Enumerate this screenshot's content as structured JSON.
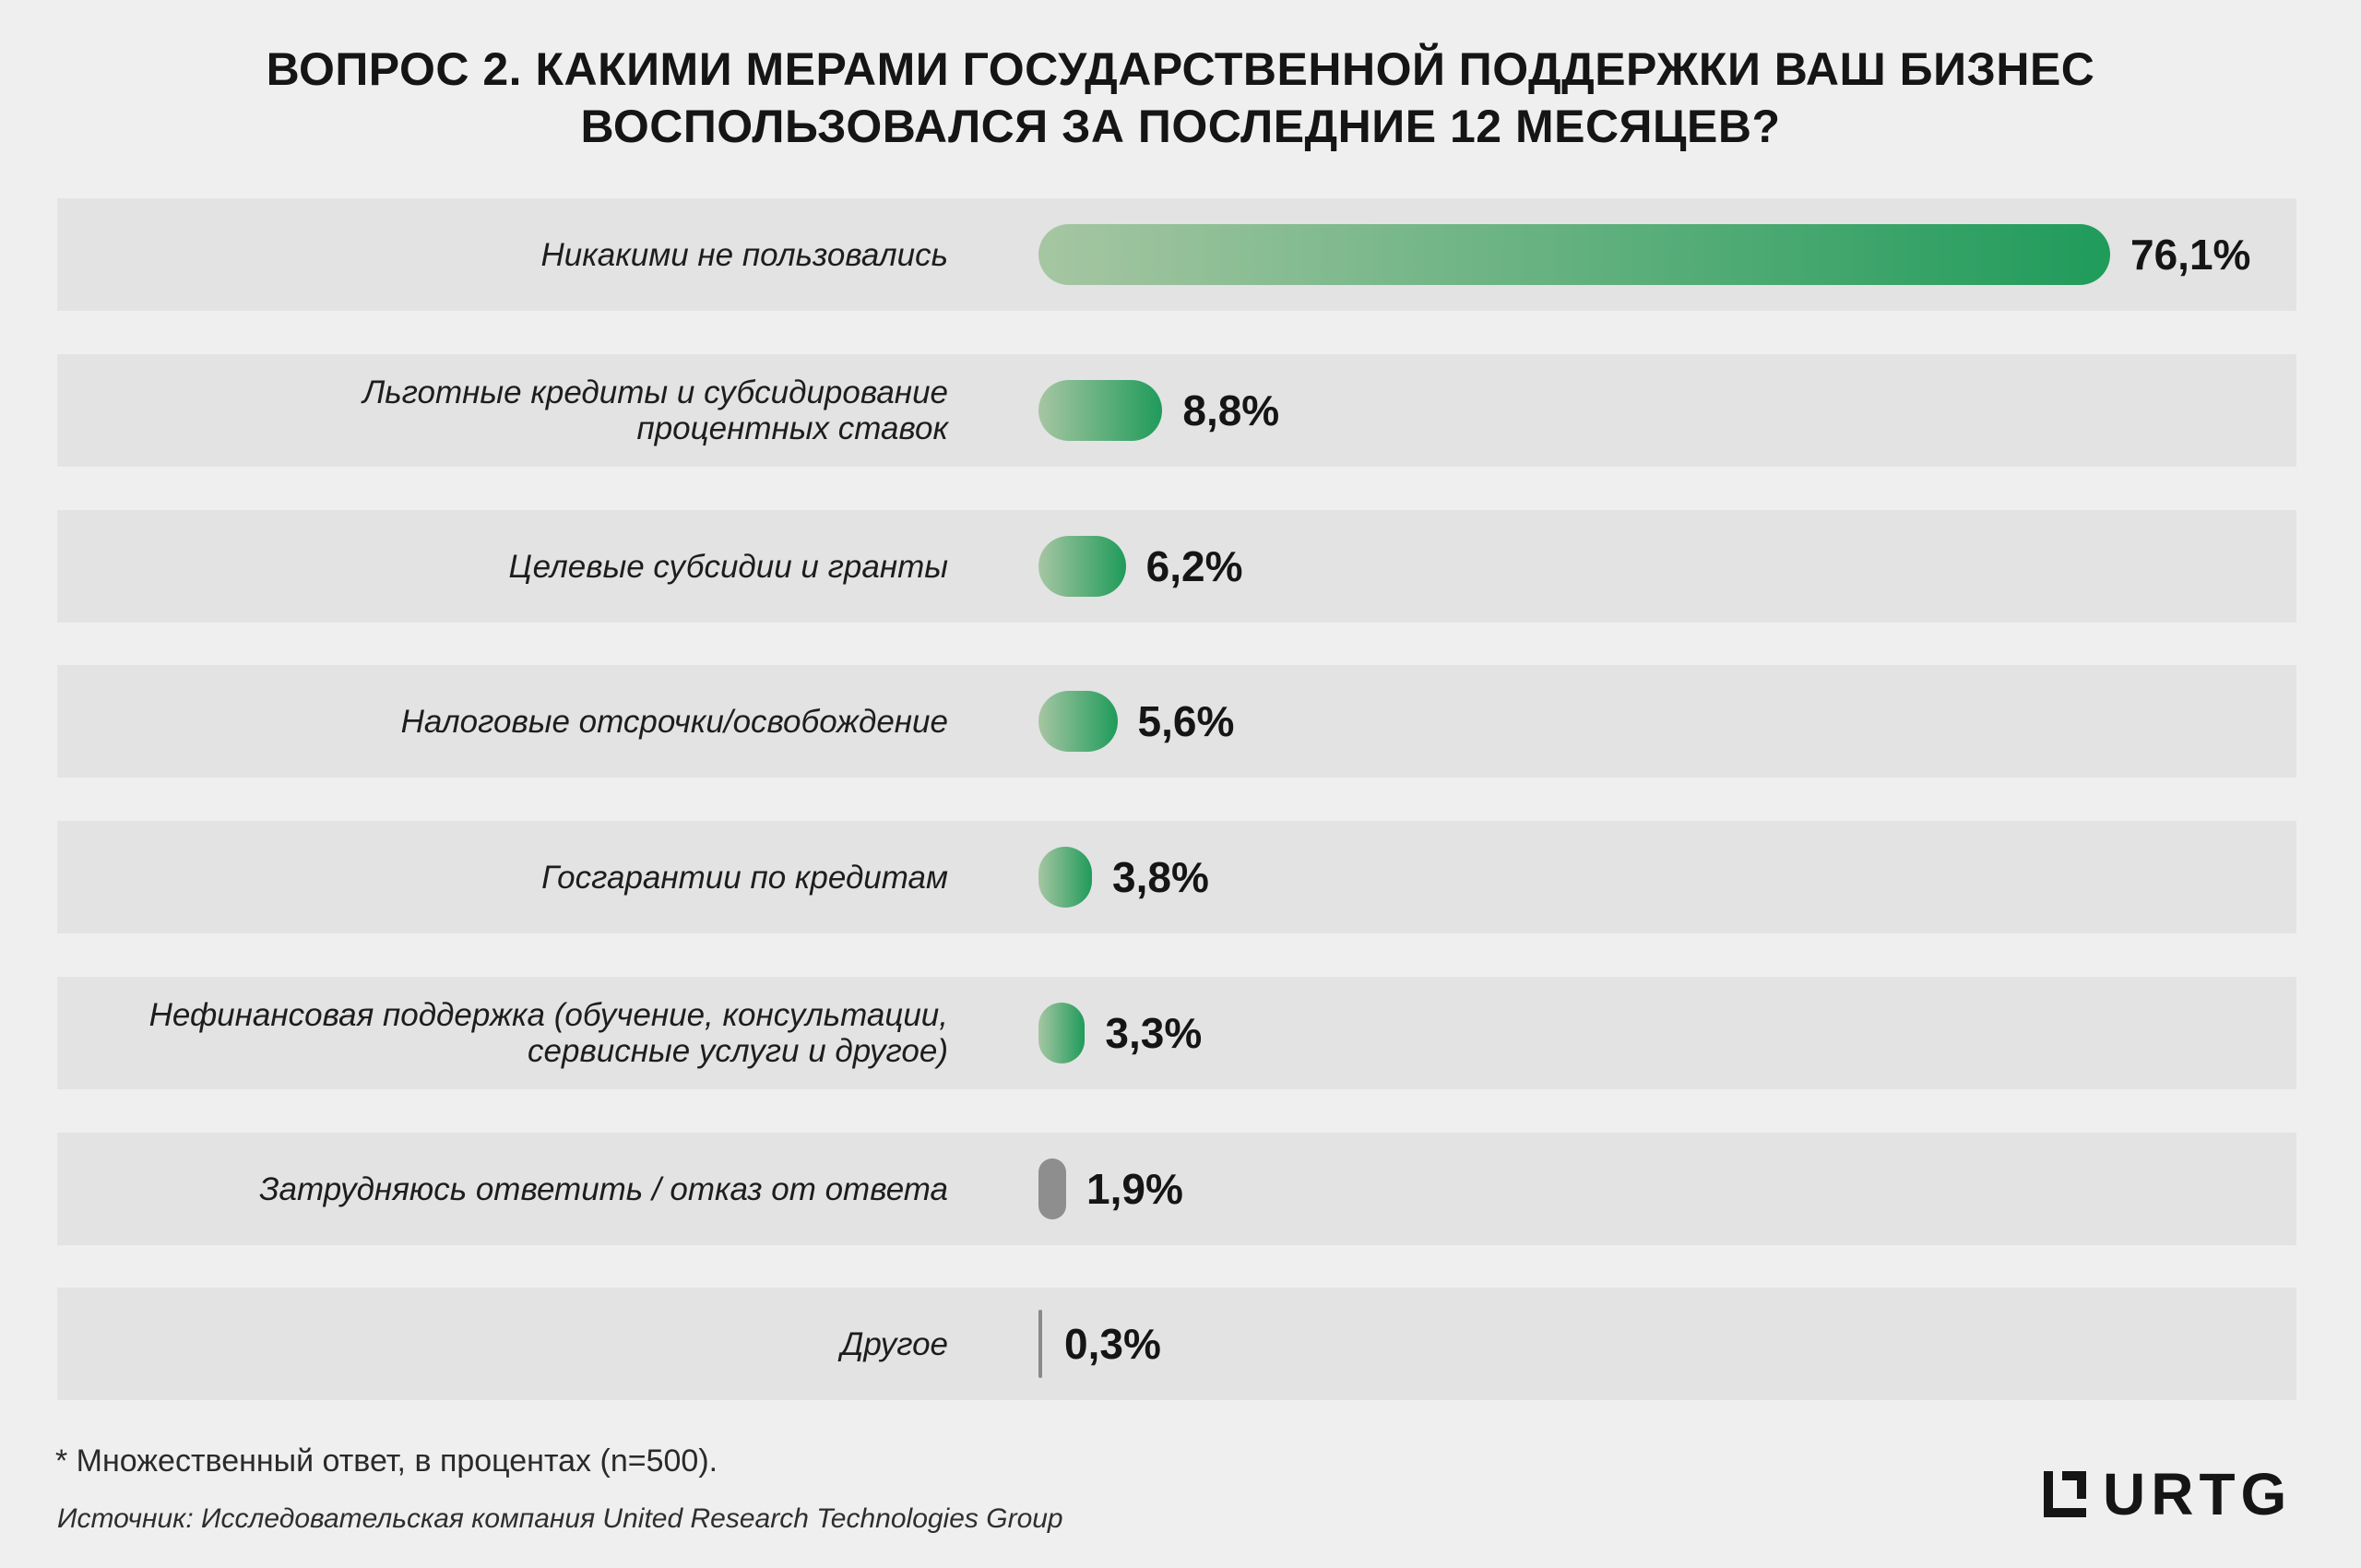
{
  "title_lines": [
    "ВОПРОС 2. КАКИМИ МЕРАМИ ГОСУДАРСТВЕННОЙ ПОДДЕРЖКИ ВАШ БИЗНЕС",
    "ВОСПОЛЬЗОВАЛСЯ ЗА ПОСЛЕДНИЕ 12 МЕСЯЦЕВ?"
  ],
  "chart_data": {
    "type": "bar",
    "orientation": "horizontal",
    "unit": "%",
    "xlim": [
      0,
      76.1
    ],
    "grid": false,
    "legend": "none",
    "categories": [
      [
        "Никакими не пользовались"
      ],
      [
        "Льготные кредиты и субсидирование",
        "процентных ставок"
      ],
      [
        "Целевые субсидии и гранты"
      ],
      [
        "Налоговые отсрочки/освобождение"
      ],
      [
        "Госгарантии по кредитам"
      ],
      [
        "Нефинансовая поддержка (обучение, консультации,",
        "сервисные услуги и другое)"
      ],
      [
        "Затрудняюсь ответить / отказ от ответа"
      ],
      [
        "Другое"
      ]
    ],
    "values": [
      76.1,
      8.8,
      6.2,
      5.6,
      3.8,
      3.3,
      1.9,
      0.3
    ],
    "value_labels": [
      "76,1%",
      "8,8%",
      "6,2%",
      "5,6%",
      "3,8%",
      "3,3%",
      "1,9%",
      "0,3%"
    ],
    "bar_colors": [
      "#1f9b5a",
      "#1f9b5a",
      "#1f9b5a",
      "#1f9b5a",
      "#1f9b5a",
      "#1f9b5a",
      "#8e8e8e",
      "#8a8a8a"
    ],
    "bar_gradient_start": "#a6c6a2"
  },
  "footnote": "* Множественный ответ, в процентах (n=500).",
  "source": "Источник: Исследовательская компания United Research Technologies Group",
  "logo": {
    "text": "URTG",
    "icon": "urtg-logo-icon"
  }
}
